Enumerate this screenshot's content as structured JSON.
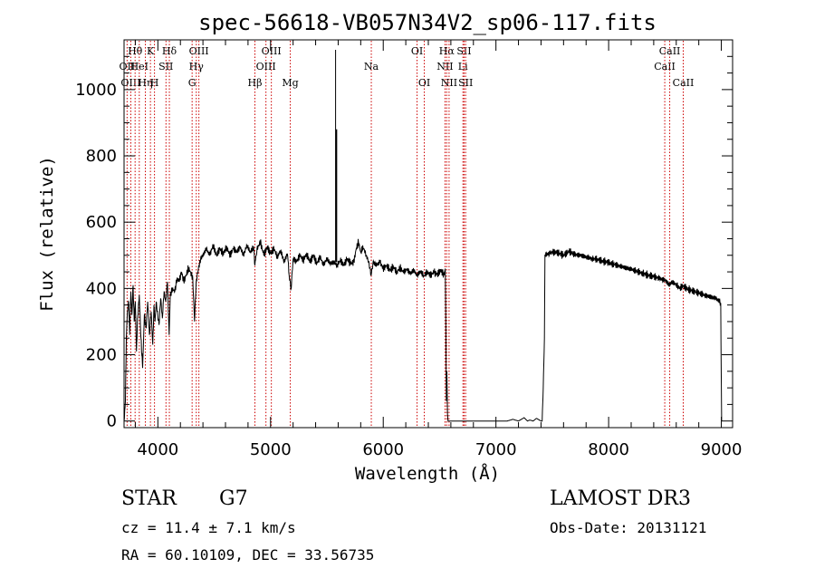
{
  "chart_data": {
    "type": "line",
    "title": "spec-56618-VB057N34V2_sp06-117.fits",
    "xlabel": "Wavelength (Å)",
    "ylabel": "Flux (relative)",
    "xlim": [
      3700,
      9100
    ],
    "ylim": [
      -20,
      1150
    ],
    "x_ticks": [
      4000,
      5000,
      6000,
      7000,
      8000,
      9000
    ],
    "y_ticks": [
      0,
      200,
      400,
      600,
      800,
      1000
    ],
    "grid": false,
    "series": [
      {
        "name": "flux",
        "points": [
          [
            3700,
            0
          ],
          [
            3712,
            60
          ],
          [
            3720,
            250
          ],
          [
            3730,
            330
          ],
          [
            3740,
            360
          ],
          [
            3750,
            260
          ],
          [
            3760,
            390
          ],
          [
            3770,
            320
          ],
          [
            3780,
            410
          ],
          [
            3790,
            300
          ],
          [
            3800,
            360
          ],
          [
            3810,
            210
          ],
          [
            3820,
            310
          ],
          [
            3835,
            380
          ],
          [
            3850,
            250
          ],
          [
            3865,
            160
          ],
          [
            3880,
            320
          ],
          [
            3895,
            280
          ],
          [
            3910,
            360
          ],
          [
            3925,
            260
          ],
          [
            3940,
            330
          ],
          [
            3955,
            230
          ],
          [
            3965,
            350
          ],
          [
            3975,
            300
          ],
          [
            3985,
            360
          ],
          [
            3995,
            330
          ],
          [
            4010,
            290
          ],
          [
            4025,
            370
          ],
          [
            4040,
            310
          ],
          [
            4055,
            390
          ],
          [
            4070,
            360
          ],
          [
            4085,
            420
          ],
          [
            4100,
            260
          ],
          [
            4110,
            380
          ],
          [
            4130,
            400
          ],
          [
            4150,
            390
          ],
          [
            4170,
            430
          ],
          [
            4190,
            420
          ],
          [
            4210,
            450
          ],
          [
            4230,
            420
          ],
          [
            4250,
            440
          ],
          [
            4270,
            460
          ],
          [
            4290,
            450
          ],
          [
            4310,
            430
          ],
          [
            4325,
            300
          ],
          [
            4340,
            420
          ],
          [
            4360,
            460
          ],
          [
            4380,
            490
          ],
          [
            4400,
            500
          ],
          [
            4430,
            520
          ],
          [
            4460,
            500
          ],
          [
            4490,
            530
          ],
          [
            4520,
            500
          ],
          [
            4550,
            520
          ],
          [
            4580,
            505
          ],
          [
            4610,
            525
          ],
          [
            4640,
            500
          ],
          [
            4670,
            520
          ],
          [
            4700,
            510
          ],
          [
            4730,
            525
          ],
          [
            4760,
            500
          ],
          [
            4790,
            530
          ],
          [
            4820,
            510
          ],
          [
            4850,
            525
          ],
          [
            4861,
            470
          ],
          [
            4880,
            520
          ],
          [
            4910,
            540
          ],
          [
            4940,
            500
          ],
          [
            4970,
            525
          ],
          [
            5000,
            505
          ],
          [
            5030,
            520
          ],
          [
            5060,
            495
          ],
          [
            5090,
            515
          ],
          [
            5120,
            480
          ],
          [
            5150,
            505
          ],
          [
            5167,
            430
          ],
          [
            5183,
            400
          ],
          [
            5200,
            490
          ],
          [
            5230,
            480
          ],
          [
            5260,
            500
          ],
          [
            5290,
            485
          ],
          [
            5320,
            505
          ],
          [
            5350,
            480
          ],
          [
            5380,
            500
          ],
          [
            5410,
            475
          ],
          [
            5440,
            495
          ],
          [
            5470,
            470
          ],
          [
            5500,
            490
          ],
          [
            5530,
            475
          ],
          [
            5560,
            480
          ],
          [
            5590,
            470
          ],
          [
            5620,
            485
          ],
          [
            5650,
            470
          ],
          [
            5680,
            490
          ],
          [
            5710,
            475
          ],
          [
            5740,
            480
          ],
          [
            5760,
            520
          ],
          [
            5780,
            540
          ],
          [
            5800,
            510
          ],
          [
            5820,
            525
          ],
          [
            5850,
            500
          ],
          [
            5870,
            480
          ],
          [
            5893,
            440
          ],
          [
            5910,
            480
          ],
          [
            5940,
            470
          ],
          [
            5970,
            480
          ],
          [
            6000,
            460
          ],
          [
            6030,
            470
          ],
          [
            6060,
            455
          ],
          [
            6090,
            465
          ],
          [
            6120,
            450
          ],
          [
            6150,
            462
          ],
          [
            6180,
            448
          ],
          [
            6210,
            458
          ],
          [
            6240,
            445
          ],
          [
            6270,
            455
          ],
          [
            6300,
            440
          ],
          [
            6330,
            452
          ],
          [
            6360,
            438
          ],
          [
            6390,
            450
          ],
          [
            6420,
            440
          ],
          [
            6450,
            448
          ],
          [
            6480,
            442
          ],
          [
            6510,
            455
          ],
          [
            6540,
            440
          ],
          [
            6550,
            460
          ],
          [
            6555,
            300
          ],
          [
            6560,
            60
          ],
          [
            6565,
            150
          ],
          [
            6570,
            20
          ],
          [
            6575,
            0
          ],
          [
            6600,
            0
          ],
          [
            6700,
            0
          ],
          [
            6800,
            0
          ],
          [
            6900,
            0
          ],
          [
            7000,
            0
          ],
          [
            7100,
            0
          ],
          [
            7150,
            5
          ],
          [
            7200,
            0
          ],
          [
            7250,
            10
          ],
          [
            7280,
            0
          ],
          [
            7300,
            3
          ],
          [
            7330,
            0
          ],
          [
            7360,
            8
          ],
          [
            7400,
            0
          ],
          [
            7410,
            0
          ],
          [
            7420,
            100
          ],
          [
            7430,
            250
          ],
          [
            7435,
            502
          ],
          [
            7480,
            505
          ],
          [
            7500,
            510
          ],
          [
            7550,
            508
          ],
          [
            7600,
            500
          ],
          [
            7650,
            512
          ],
          [
            7700,
            502
          ],
          [
            7750,
            500
          ],
          [
            7800,
            495
          ],
          [
            7850,
            490
          ],
          [
            7900,
            488
          ],
          [
            7950,
            482
          ],
          [
            8000,
            478
          ],
          [
            8050,
            472
          ],
          [
            8100,
            468
          ],
          [
            8150,
            462
          ],
          [
            8200,
            458
          ],
          [
            8250,
            452
          ],
          [
            8300,
            446
          ],
          [
            8350,
            440
          ],
          [
            8400,
            436
          ],
          [
            8450,
            430
          ],
          [
            8500,
            425
          ],
          [
            8540,
            410
          ],
          [
            8560,
            420
          ],
          [
            8600,
            412
          ],
          [
            8630,
            400
          ],
          [
            8660,
            408
          ],
          [
            8700,
            398
          ],
          [
            8750,
            392
          ],
          [
            8800,
            386
          ],
          [
            8850,
            380
          ],
          [
            8900,
            375
          ],
          [
            8950,
            370
          ],
          [
            8980,
            362
          ],
          [
            8995,
            355
          ],
          [
            9000,
            100
          ],
          [
            9003,
            0
          ]
        ],
        "spike": {
          "x": 5577,
          "y_base": 480,
          "y_peak": 1120,
          "y_secondary": 880
        }
      }
    ],
    "line_marks": [
      {
        "wl": 3727,
        "label": "OII",
        "row": 1
      },
      {
        "wl": 3760,
        "label": "OIII",
        "row": 2
      },
      {
        "wl": 3798,
        "label": "Hθ",
        "row": 0
      },
      {
        "wl": 3835,
        "label": "HeI",
        "row": 1
      },
      {
        "wl": 3889,
        "label": "Hη",
        "row": 2
      },
      {
        "wl": 3934,
        "label": "K",
        "row": 0
      },
      {
        "wl": 3970,
        "label": "H",
        "row": 2
      },
      {
        "wl": 4072,
        "label": "SII",
        "row": 1
      },
      {
        "wl": 4102,
        "label": "Hδ",
        "row": 0
      },
      {
        "wl": 4304,
        "label": "G",
        "row": 2
      },
      {
        "wl": 4341,
        "label": "Hγ",
        "row": 1
      },
      {
        "wl": 4364,
        "label": "OIII",
        "row": 0
      },
      {
        "wl": 4861,
        "label": "Hβ",
        "row": 2
      },
      {
        "wl": 4959,
        "label": "OIII",
        "row": 1
      },
      {
        "wl": 5007,
        "label": "OIII",
        "row": 0
      },
      {
        "wl": 5175,
        "label": "Mg",
        "row": 2
      },
      {
        "wl": 5894,
        "label": "Na",
        "row": 1
      },
      {
        "wl": 6300,
        "label": "OI",
        "row": 0
      },
      {
        "wl": 6364,
        "label": "OI",
        "row": 2
      },
      {
        "wl": 6548,
        "label": "NII",
        "row": 1
      },
      {
        "wl": 6563,
        "label": "Hα",
        "row": 0
      },
      {
        "wl": 6584,
        "label": "NII",
        "row": 2
      },
      {
        "wl": 6707,
        "label": "Li",
        "row": 1
      },
      {
        "wl": 6717,
        "label": "SII",
        "row": 0
      },
      {
        "wl": 6731,
        "label": "SII",
        "row": 2
      },
      {
        "wl": 8498,
        "label": "CaII",
        "row": 1
      },
      {
        "wl": 8542,
        "label": "CaII",
        "row": 0
      },
      {
        "wl": 8662,
        "label": "CaII",
        "row": 2
      }
    ],
    "line_mark_color": "#cc0000"
  },
  "info": {
    "object_class": "STAR",
    "subclass": "G7",
    "survey": "LAMOST DR3",
    "cz": "cz = 11.4 ± 7.1 km/s",
    "obs_date": "Obs-Date: 20131121",
    "coords": "RA =  60.10109, DEC =  33.56735"
  }
}
